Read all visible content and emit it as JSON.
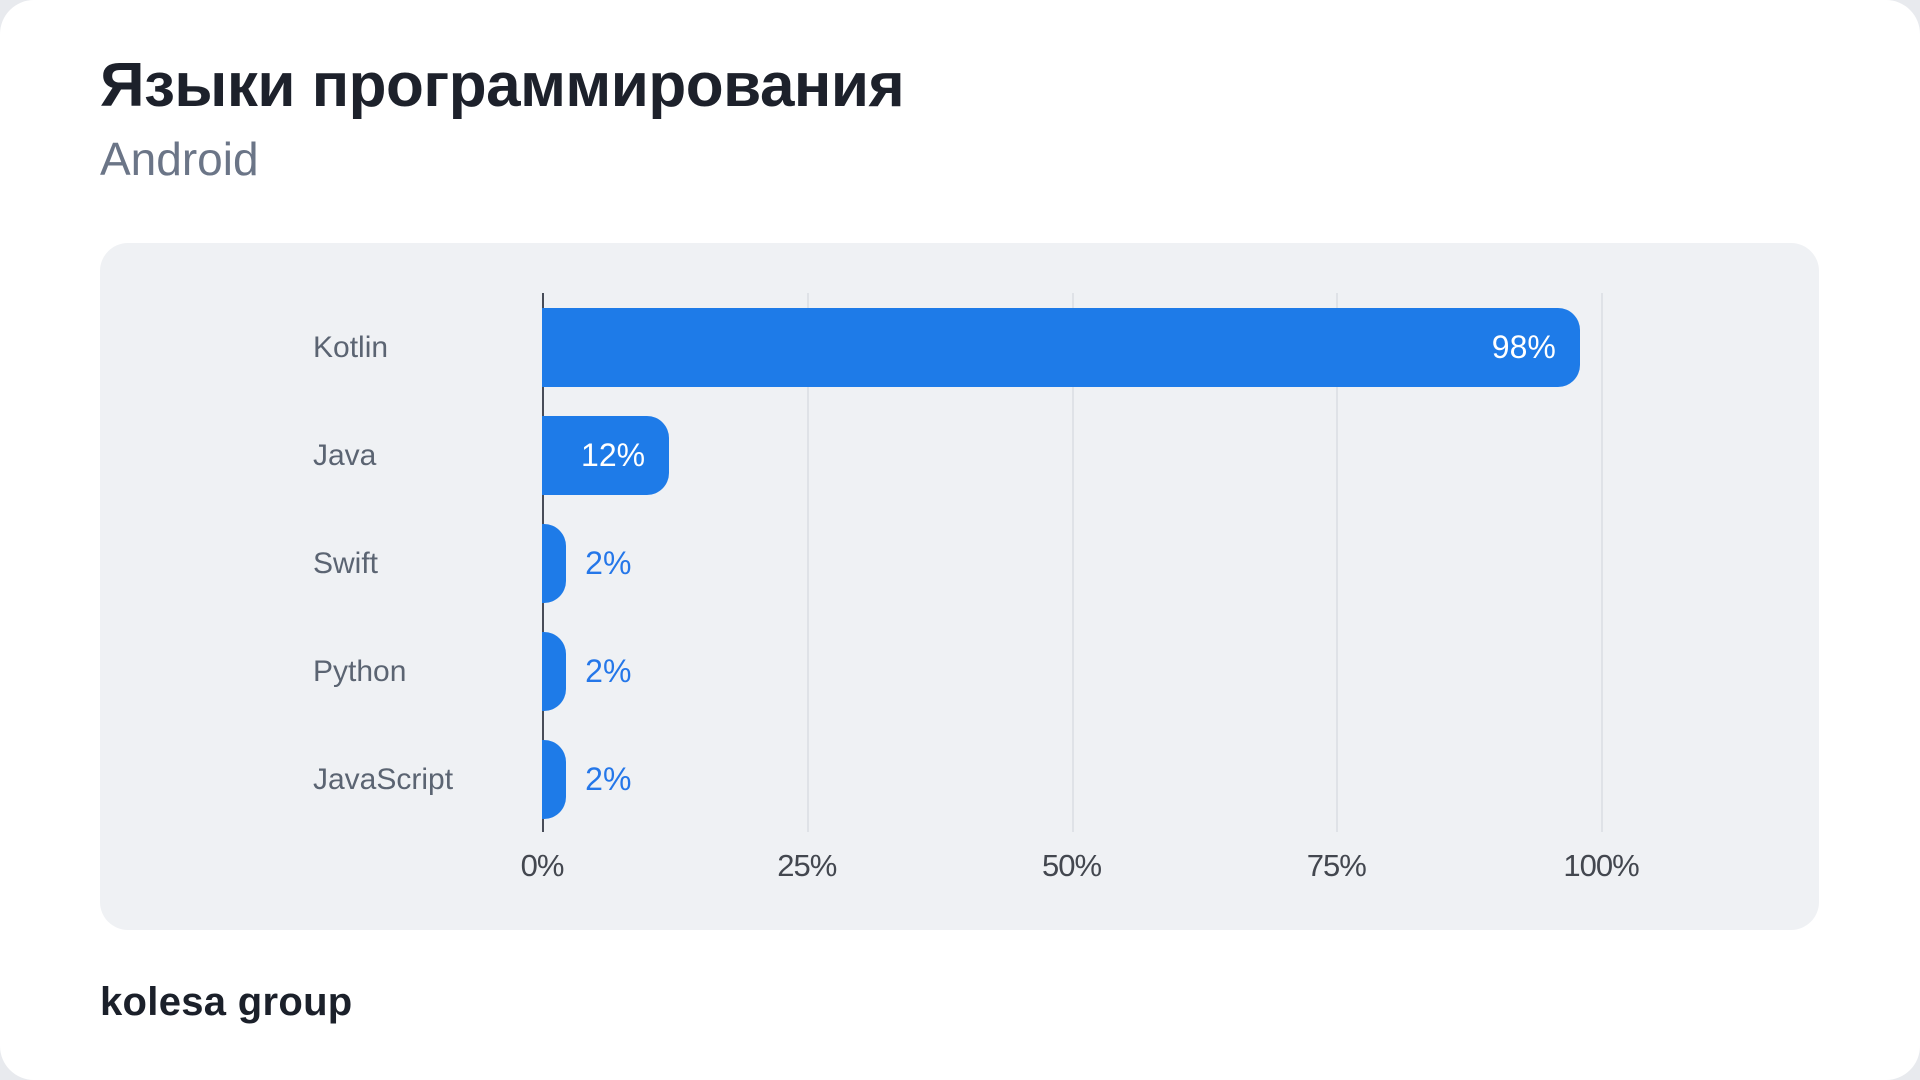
{
  "header": {
    "title": "Языки программирования",
    "subtitle": "Android"
  },
  "footer": {
    "brand": "kolesa group"
  },
  "colors": {
    "bar_fill": "#1E7BE8",
    "bar_value_inside": "#FFFFFF",
    "bar_value_outside": "#2577E9",
    "panel_background": "#EFF1F4",
    "gridline": "#DFE2E7",
    "axis_line": "#474C58",
    "title_text": "#1D212B",
    "subtitle_text": "#6B7587",
    "category_text": "#5B6472",
    "tick_text": "#43474F",
    "card_background": "#FFFFFF"
  },
  "chart_data": {
    "type": "bar",
    "orientation": "horizontal",
    "title": "Языки программирования",
    "subtitle": "Android",
    "categories": [
      "Kotlin",
      "Java",
      "Swift",
      "Python",
      "JavaScript"
    ],
    "values": [
      98,
      12,
      2,
      2,
      2
    ],
    "value_labels": [
      "98%",
      "12%",
      "2%",
      "2%",
      "2%"
    ],
    "x_ticks": [
      "0%",
      "25%",
      "50%",
      "75%",
      "100%"
    ],
    "x_tick_values": [
      0,
      25,
      50,
      75,
      100
    ],
    "xlim": [
      0,
      100
    ],
    "grid": "vertical-gridlines",
    "legend": "none"
  }
}
